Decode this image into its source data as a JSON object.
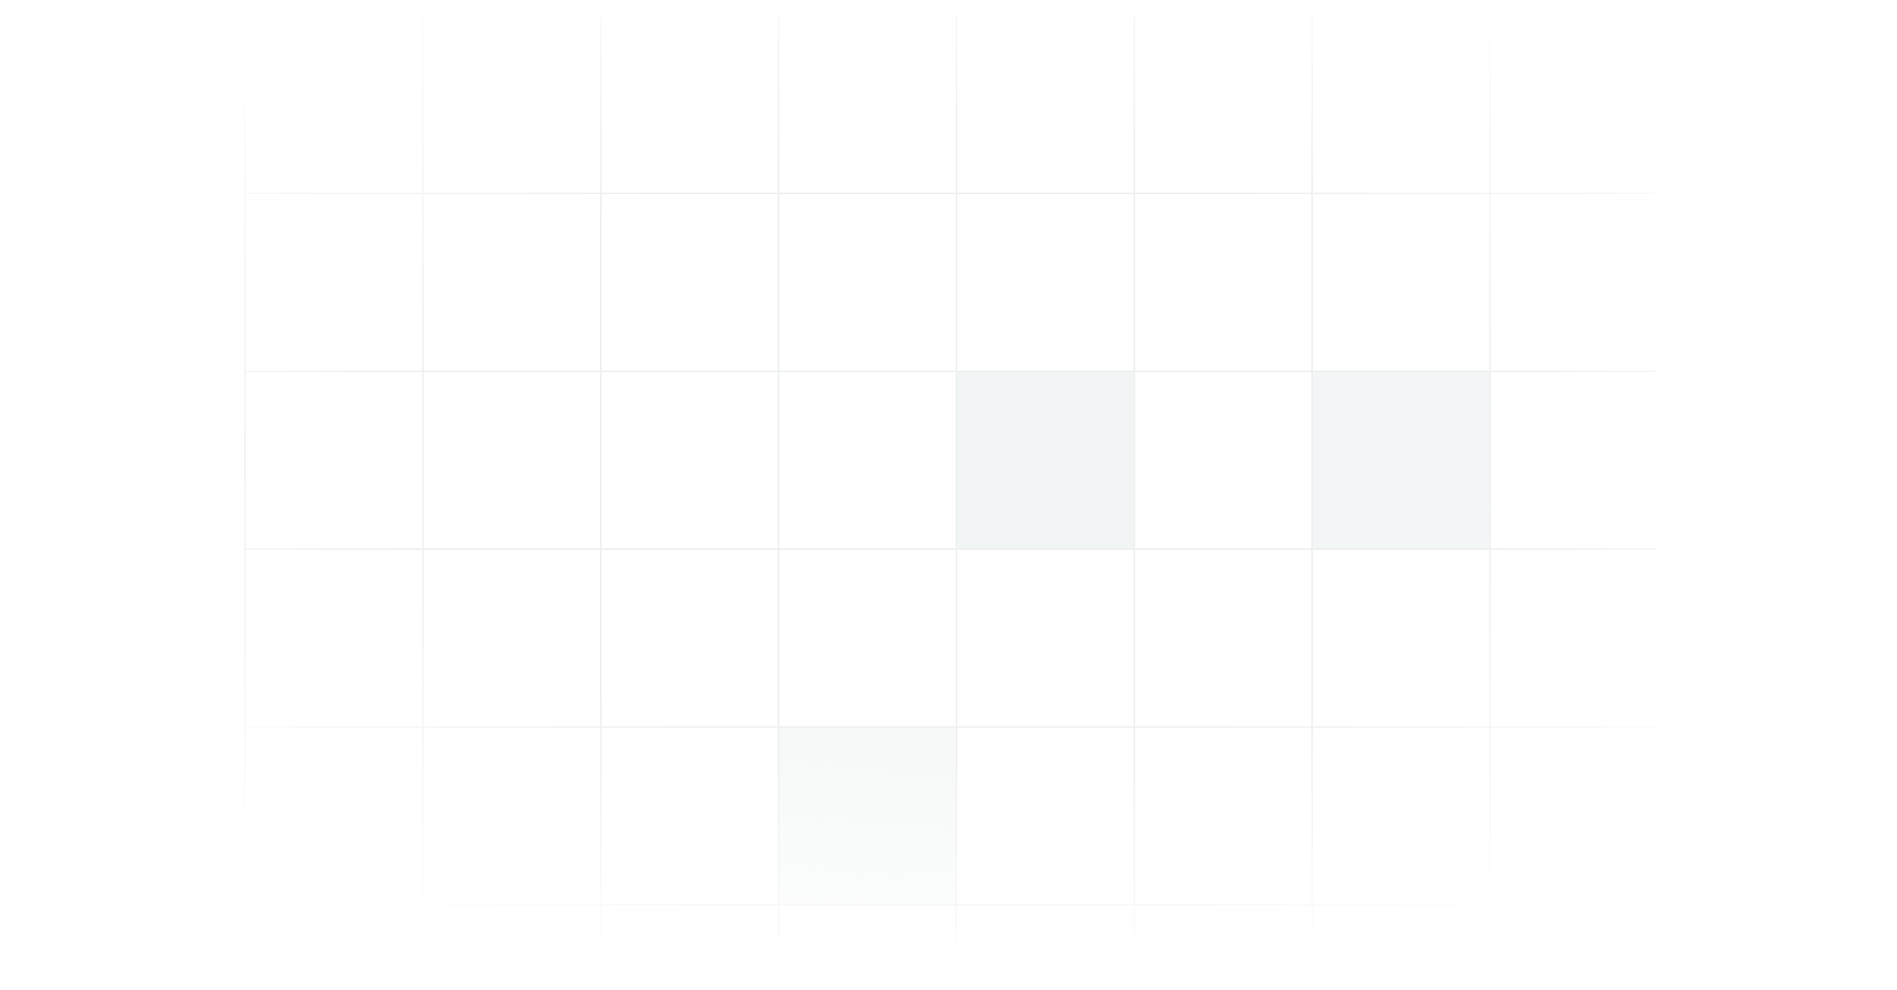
{
  "background_color": "#ffffff",
  "grid": {
    "line_color": "#eef0f0",
    "highlight_color": "#f1f5f5",
    "highlight_cells": [
      {
        "row": 2,
        "col": 4,
        "opacity": 1.0
      },
      {
        "row": 2,
        "col": 6,
        "opacity": 0.85
      },
      {
        "row": 4,
        "col": 3,
        "opacity": 0.6
      }
    ]
  }
}
